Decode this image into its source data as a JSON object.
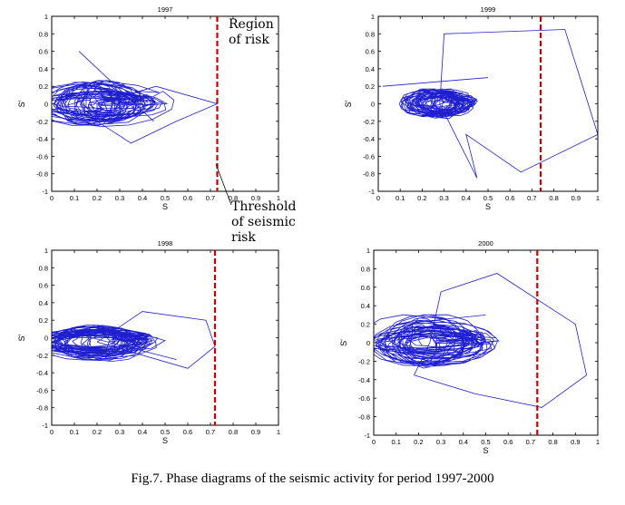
{
  "caption": "Fig.7. Phase diagrams of the seismic activity for period 1997-2000",
  "annotations": {
    "region_line1": "Region",
    "region_line2": "of risk",
    "threshold_line1": "Threshold",
    "threshold_line2": "of seismic",
    "threshold_line3": "risk"
  },
  "colors": {
    "trajectory": "#1f1fd0",
    "threshold": "#cc0000",
    "axes": "#000000"
  },
  "chart_data": [
    {
      "type": "line",
      "title": "1997",
      "xlabel": "S",
      "ylabel": "S'",
      "xlim": [
        0,
        1
      ],
      "ylim": [
        -1,
        1
      ],
      "x_ticks": [
        "0",
        "0.1",
        "0.2",
        "0.3",
        "0.4",
        "0.5",
        "0.6",
        "0.7",
        "0.8",
        "0.9",
        "1"
      ],
      "y_ticks": [
        "1",
        "0.8",
        "0.6",
        "0.4",
        "0.2",
        "0",
        "-0.2",
        "-0.4",
        "-0.6",
        "-0.8",
        "-1"
      ],
      "threshold_x": 0.73,
      "trajectory": {
        "center": [
          0.2,
          0.0
        ],
        "rx": [
          0.04,
          0.28
        ],
        "ry": [
          0.05,
          0.25
        ],
        "excursions": [
          [
            0.46,
            0.2
          ],
          [
            0.73,
            0.0
          ],
          [
            0.55,
            -0.2
          ],
          [
            0.35,
            -0.45
          ],
          [
            0.2,
            -0.2
          ]
        ],
        "extra_line": [
          [
            0.12,
            0.6
          ],
          [
            0.45,
            -0.2
          ]
        ]
      },
      "grid": false
    },
    {
      "type": "line",
      "title": "1999",
      "xlabel": "S",
      "ylabel": "S'",
      "xlim": [
        0,
        1
      ],
      "ylim": [
        -1,
        1
      ],
      "x_ticks": [
        "0",
        "0.1",
        "0.2",
        "0.3",
        "0.4",
        "0.5",
        "0.6",
        "0.7",
        "0.8",
        "0.9",
        "1"
      ],
      "y_ticks": [
        "1",
        "0.8",
        "0.6",
        "0.4",
        "0.2",
        "0",
        "-0.2",
        "-0.4",
        "-0.6",
        "-0.8",
        "-1"
      ],
      "threshold_x": 0.74,
      "trajectory": {
        "center": [
          0.28,
          0.0
        ],
        "rx": [
          0.05,
          0.14
        ],
        "ry": [
          0.05,
          0.16
        ],
        "excursions": [
          [
            0.3,
            0.8
          ],
          [
            0.85,
            0.85
          ],
          [
            1.0,
            -0.35
          ],
          [
            0.65,
            -0.78
          ],
          [
            0.4,
            -0.35
          ],
          [
            0.45,
            -0.85
          ]
        ],
        "extra_line": [
          [
            0.02,
            0.2
          ],
          [
            0.5,
            0.3
          ]
        ]
      },
      "grid": false
    },
    {
      "type": "line",
      "title": "1998",
      "xlabel": "S",
      "ylabel": "S'",
      "xlim": [
        0,
        1
      ],
      "ylim": [
        -1,
        1
      ],
      "x_ticks": [
        "0",
        "0.1",
        "0.2",
        "0.3",
        "0.4",
        "0.5",
        "0.6",
        "0.7",
        "0.8",
        "0.9",
        "1"
      ],
      "y_ticks": [
        "1",
        "0.8",
        "0.6",
        "0.4",
        "0.2",
        "0",
        "-0.2",
        "-0.4",
        "-0.6",
        "-0.8",
        "-1"
      ],
      "threshold_x": 0.72,
      "trajectory": {
        "center": [
          0.2,
          -0.05
        ],
        "rx": [
          0.05,
          0.26
        ],
        "ry": [
          0.05,
          0.2
        ],
        "excursions": [
          [
            0.4,
            0.3
          ],
          [
            0.68,
            0.2
          ],
          [
            0.72,
            -0.1
          ],
          [
            0.6,
            -0.35
          ]
        ],
        "extra_line": [
          [
            0.1,
            0.05
          ],
          [
            0.55,
            -0.25
          ]
        ]
      },
      "grid": false
    },
    {
      "type": "line",
      "title": "2000",
      "xlabel": "S",
      "ylabel": "S'",
      "xlim": [
        0,
        1
      ],
      "ylim": [
        -1,
        1
      ],
      "x_ticks": [
        "0",
        "0.1",
        "0.2",
        "0.3",
        "0.4",
        "0.5",
        "0.6",
        "0.7",
        "0.8",
        "0.9",
        "1"
      ],
      "y_ticks": [
        "1",
        "0.8",
        "0.6",
        "0.4",
        "0.2",
        "0",
        "-0.2",
        "-0.4",
        "-0.6",
        "-0.8",
        "-1"
      ],
      "threshold_x": 0.73,
      "trajectory": {
        "center": [
          0.25,
          0.0
        ],
        "rx": [
          0.05,
          0.28
        ],
        "ry": [
          0.05,
          0.3
        ],
        "excursions": [
          [
            0.3,
            0.55
          ],
          [
            0.55,
            0.75
          ],
          [
            0.9,
            0.2
          ],
          [
            0.95,
            -0.35
          ],
          [
            0.75,
            -0.7
          ],
          [
            0.45,
            -0.55
          ],
          [
            0.18,
            -0.35
          ]
        ],
        "extra_line": [
          [
            0.1,
            0.2
          ],
          [
            0.5,
            0.3
          ]
        ]
      },
      "grid": false
    }
  ]
}
